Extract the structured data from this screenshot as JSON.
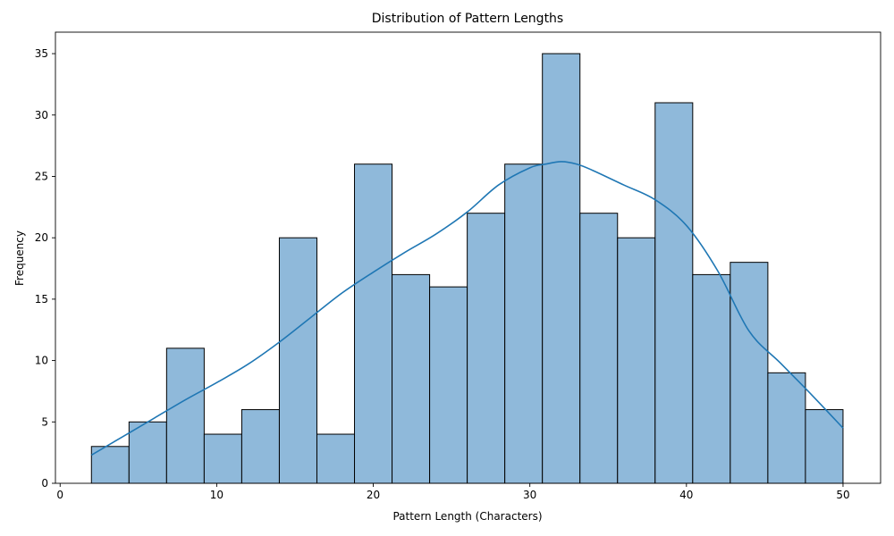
{
  "chart_data": {
    "type": "bar",
    "title": "Distribution of Pattern Lengths",
    "xlabel": "Pattern Length (Characters)",
    "ylabel": "Frequency",
    "xlim": [
      -0.3,
      52.4
    ],
    "ylim": [
      0,
      36.75
    ],
    "bin_range": [
      2,
      50
    ],
    "bin_count": 20,
    "values": [
      3,
      5,
      11,
      4,
      6,
      20,
      4,
      26,
      17,
      16,
      22,
      26,
      35,
      22,
      20,
      31,
      17,
      18,
      9,
      6
    ],
    "xticks": [
      0,
      10,
      20,
      30,
      40,
      50
    ],
    "yticks": [
      0,
      5,
      10,
      15,
      20,
      25,
      30,
      35
    ],
    "kde": {
      "x": [
        2,
        4,
        6,
        8,
        10,
        12,
        14,
        16,
        18,
        20,
        22,
        24,
        26,
        28,
        30,
        31,
        32,
        33,
        34,
        36,
        38,
        40,
        42,
        44,
        46,
        48,
        50
      ],
      "y": [
        2.3,
        3.8,
        5.3,
        6.8,
        8.2,
        9.7,
        11.5,
        13.5,
        15.5,
        17.2,
        18.8,
        20.3,
        22.1,
        24.3,
        25.7,
        26.0,
        26.2,
        26.0,
        25.5,
        24.3,
        23.1,
        21.0,
        17.3,
        12.4,
        9.8,
        7.2,
        4.5
      ]
    },
    "bar_color": "#8fb9da",
    "line_color": "#1f77b4",
    "grid": false,
    "legend": "none"
  }
}
